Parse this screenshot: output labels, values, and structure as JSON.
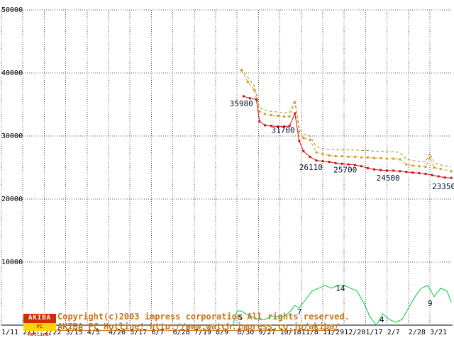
{
  "footer": {
    "logo_top": "AKIBA",
    "logo_bottom": "PC Hotline!",
    "copyright_line1": "Copyright(c)2003 impress corporation All rights reserved.",
    "copyright_line2": "AKIBA PC Hotline! http://www.watch.impress.co.jp/akiba/"
  },
  "chart_data": {
    "type": "line",
    "title": "",
    "xlabel": "",
    "ylabel": "",
    "ylim": [
      0,
      50000
    ],
    "y_ticks": [
      10000,
      20000,
      30000,
      40000,
      50000
    ],
    "x_tick_labels": [
      "1/11",
      "2/1",
      "2/22",
      "3/15",
      "4/5",
      "4/26",
      "5/17",
      "6/7",
      "6/28",
      "7/19",
      "8/9",
      "8/30",
      "9/27",
      "10/18",
      "11/8",
      "11/29",
      "12/20",
      "1/17",
      "2/7",
      "2/28",
      "3/21"
    ],
    "grid": true,
    "legend": "none",
    "count_scale": 450,
    "colors": {
      "lowest": "#cc1111",
      "average": "#dd9922",
      "highest": "#99992e",
      "shops": "#00cc33",
      "grid": "#555555",
      "annotation": "#001133",
      "axis_text": "#000000"
    },
    "series": [
      {
        "name": "highest_price",
        "color_key": "highest",
        "dash": "4,3",
        "markers": false,
        "axis": "price",
        "points": [
          [
            11.2,
            40700
          ],
          [
            11.5,
            39300
          ],
          [
            11.8,
            38000
          ],
          [
            12.05,
            34500
          ],
          [
            12.3,
            34100
          ],
          [
            12.6,
            33900
          ],
          [
            12.9,
            33800
          ],
          [
            13.2,
            33700
          ],
          [
            13.45,
            33700
          ],
          [
            13.7,
            35700
          ],
          [
            13.9,
            31300
          ],
          [
            14.1,
            30300
          ],
          [
            14.4,
            30000
          ],
          [
            14.7,
            28300
          ],
          [
            15.0,
            28000
          ],
          [
            15.3,
            27900
          ],
          [
            15.6,
            27800
          ],
          [
            15.9,
            27800
          ],
          [
            16.2,
            27800
          ],
          [
            16.5,
            27800
          ],
          [
            16.8,
            27700
          ],
          [
            17.1,
            27700
          ],
          [
            17.4,
            27600
          ],
          [
            17.7,
            27600
          ],
          [
            18.0,
            27500
          ],
          [
            18.3,
            27500
          ],
          [
            18.6,
            27400
          ],
          [
            18.9,
            26300
          ],
          [
            19.2,
            26100
          ],
          [
            19.5,
            26000
          ],
          [
            19.8,
            25900
          ],
          [
            20.0,
            27300
          ],
          [
            20.2,
            25800
          ],
          [
            20.5,
            25400
          ],
          [
            21.0,
            25100
          ]
        ]
      },
      {
        "name": "average_price",
        "color_key": "average",
        "dash": "4,3",
        "markers": true,
        "axis": "price",
        "points": [
          [
            11.2,
            40400
          ],
          [
            11.5,
            38600
          ],
          [
            11.8,
            37300
          ],
          [
            12.05,
            33900
          ],
          [
            12.3,
            33500
          ],
          [
            12.6,
            33300
          ],
          [
            12.9,
            33200
          ],
          [
            13.2,
            33100
          ],
          [
            13.45,
            33100
          ],
          [
            13.7,
            35300
          ],
          [
            13.9,
            30700
          ],
          [
            14.1,
            29700
          ],
          [
            14.4,
            29400
          ],
          [
            14.7,
            27400
          ],
          [
            15.0,
            27100
          ],
          [
            15.3,
            26900
          ],
          [
            15.6,
            26800
          ],
          [
            15.9,
            26800
          ],
          [
            16.2,
            26700
          ],
          [
            16.5,
            26700
          ],
          [
            16.8,
            26600
          ],
          [
            17.1,
            26600
          ],
          [
            17.4,
            26500
          ],
          [
            17.7,
            26500
          ],
          [
            18.0,
            26400
          ],
          [
            18.3,
            26400
          ],
          [
            18.6,
            26300
          ],
          [
            18.9,
            25500
          ],
          [
            19.2,
            25300
          ],
          [
            19.5,
            25200
          ],
          [
            19.8,
            25100
          ],
          [
            20.0,
            26600
          ],
          [
            20.2,
            25000
          ],
          [
            20.5,
            24800
          ],
          [
            21.0,
            24400
          ]
        ]
      },
      {
        "name": "lowest_price",
        "color_key": "lowest",
        "dash": null,
        "markers": true,
        "axis": "price",
        "points": [
          [
            11.3,
            36300
          ],
          [
            11.6,
            35980
          ],
          [
            11.9,
            35800
          ],
          [
            12.05,
            32300
          ],
          [
            12.3,
            31700
          ],
          [
            12.6,
            31600
          ],
          [
            12.9,
            31500
          ],
          [
            13.2,
            31500
          ],
          [
            13.45,
            31600
          ],
          [
            13.7,
            33600
          ],
          [
            13.9,
            29200
          ],
          [
            14.1,
            27600
          ],
          [
            14.4,
            26700
          ],
          [
            14.7,
            26110
          ],
          [
            15.0,
            26000
          ],
          [
            15.3,
            25900
          ],
          [
            15.6,
            25700
          ],
          [
            15.9,
            25600
          ],
          [
            16.2,
            25500
          ],
          [
            16.5,
            25400
          ],
          [
            16.8,
            25200
          ],
          [
            17.1,
            24900
          ],
          [
            17.4,
            24700
          ],
          [
            17.7,
            24600
          ],
          [
            18.0,
            24500
          ],
          [
            18.3,
            24500
          ],
          [
            18.6,
            24400
          ],
          [
            18.9,
            24300
          ],
          [
            19.2,
            24200
          ],
          [
            19.5,
            24100
          ],
          [
            19.8,
            24000
          ],
          [
            20.1,
            23800
          ],
          [
            20.4,
            23600
          ],
          [
            20.7,
            23400
          ],
          [
            21.0,
            23350
          ]
        ]
      },
      {
        "name": "shop_count",
        "color_key": "shops",
        "dash": null,
        "markers": false,
        "axis": "count",
        "points": [
          [
            10.8,
            0
          ],
          [
            11.0,
            5
          ],
          [
            11.2,
            5
          ],
          [
            11.4,
            4
          ],
          [
            11.7,
            3
          ],
          [
            12.0,
            2
          ],
          [
            12.3,
            2
          ],
          [
            12.6,
            3
          ],
          [
            12.9,
            3
          ],
          [
            13.2,
            3
          ],
          [
            13.5,
            5
          ],
          [
            13.7,
            7
          ],
          [
            13.9,
            6
          ],
          [
            14.2,
            9
          ],
          [
            14.5,
            12
          ],
          [
            14.8,
            13
          ],
          [
            15.1,
            14
          ],
          [
            15.4,
            13
          ],
          [
            15.7,
            14
          ],
          [
            16.0,
            14
          ],
          [
            16.3,
            13
          ],
          [
            16.6,
            12
          ],
          [
            16.9,
            8
          ],
          [
            17.2,
            3
          ],
          [
            17.5,
            0
          ],
          [
            17.8,
            4
          ],
          [
            18.1,
            2
          ],
          [
            18.4,
            1
          ],
          [
            18.7,
            2
          ],
          [
            19.0,
            6
          ],
          [
            19.3,
            10
          ],
          [
            19.6,
            13
          ],
          [
            19.9,
            14
          ],
          [
            20.2,
            10
          ],
          [
            20.5,
            13
          ],
          [
            20.8,
            12
          ],
          [
            21.0,
            8
          ]
        ]
      }
    ],
    "annotations": [
      {
        "text": "35980",
        "t": 10.65,
        "v": 34700,
        "axis": "price"
      },
      {
        "text": "31700",
        "t": 12.6,
        "v": 30500,
        "axis": "price"
      },
      {
        "text": "26110",
        "t": 13.9,
        "v": 24600,
        "axis": "price"
      },
      {
        "text": "25700",
        "t": 15.5,
        "v": 24200,
        "axis": "price"
      },
      {
        "text": "24500",
        "t": 17.5,
        "v": 22900,
        "axis": "price"
      },
      {
        "text": "23350",
        "t": 20.1,
        "v": 21600,
        "axis": "price"
      },
      {
        "text": "5",
        "t": 11.05,
        "v": 1.75,
        "axis": "count"
      },
      {
        "text": "7",
        "t": 13.8,
        "v": 3.7,
        "axis": "count"
      },
      {
        "text": "14",
        "t": 15.6,
        "v": 12.0,
        "axis": "count"
      },
      {
        "text": "4",
        "t": 17.65,
        "v": 1.0,
        "axis": "count"
      },
      {
        "text": "9",
        "t": 19.9,
        "v": 6.7,
        "axis": "count"
      }
    ]
  }
}
